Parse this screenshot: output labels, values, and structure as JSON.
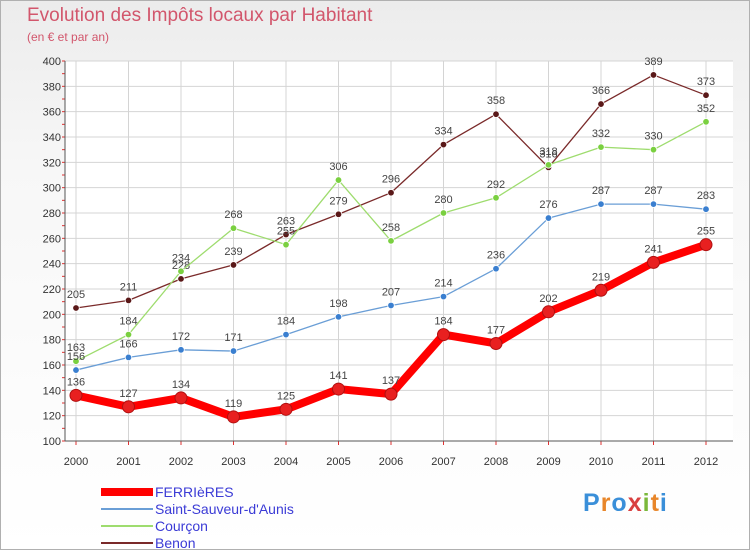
{
  "header": {
    "title": "Evolution des Impôts locaux par Habitant",
    "subtitle": "(en € et par an)"
  },
  "logo": {
    "text": "Proxiti",
    "colors": [
      "#3a8fd9",
      "#e8862a",
      "#3a8fd9",
      "#d94040",
      "#7ab83a",
      "#e8862a",
      "#3a8fd9"
    ]
  },
  "chart_data": {
    "type": "line",
    "title": "Evolution des Impôts locaux par Habitant",
    "subtitle": "(en € et par an)",
    "xlabel": "",
    "ylabel": "",
    "categories": [
      "2000",
      "2001",
      "2002",
      "2003",
      "2004",
      "2005",
      "2006",
      "2007",
      "2008",
      "2009",
      "2010",
      "2011",
      "2012"
    ],
    "ylim": [
      100,
      400
    ],
    "yticks": [
      100,
      120,
      140,
      160,
      180,
      200,
      220,
      240,
      260,
      280,
      300,
      320,
      340,
      360,
      380,
      400
    ],
    "grid": true,
    "legend_position": "bottom-left",
    "series": [
      {
        "name": "FERRIèRES",
        "color": "#ff0000",
        "marker": "#e82020",
        "width": 8,
        "values": [
          136,
          127,
          134,
          119,
          125,
          141,
          137,
          184,
          177,
          202,
          219,
          241,
          255
        ]
      },
      {
        "name": "Saint-Sauveur-d'Aunis",
        "color": "#6a9ed6",
        "marker": "#3a7fd0",
        "width": 1.3,
        "values": [
          156,
          166,
          172,
          171,
          184,
          198,
          207,
          214,
          236,
          276,
          287,
          287,
          283
        ]
      },
      {
        "name": "Courçon",
        "color": "#9edc6e",
        "marker": "#7ad040",
        "width": 1.3,
        "values": [
          163,
          184,
          234,
          268,
          255,
          306,
          258,
          280,
          292,
          318,
          332,
          330,
          352
        ]
      },
      {
        "name": "Benon",
        "color": "#7a2a2a",
        "marker": "#5a1818",
        "width": 1.3,
        "values": [
          205,
          211,
          228,
          239,
          263,
          279,
          296,
          334,
          358,
          316,
          366,
          389,
          373
        ]
      }
    ]
  }
}
